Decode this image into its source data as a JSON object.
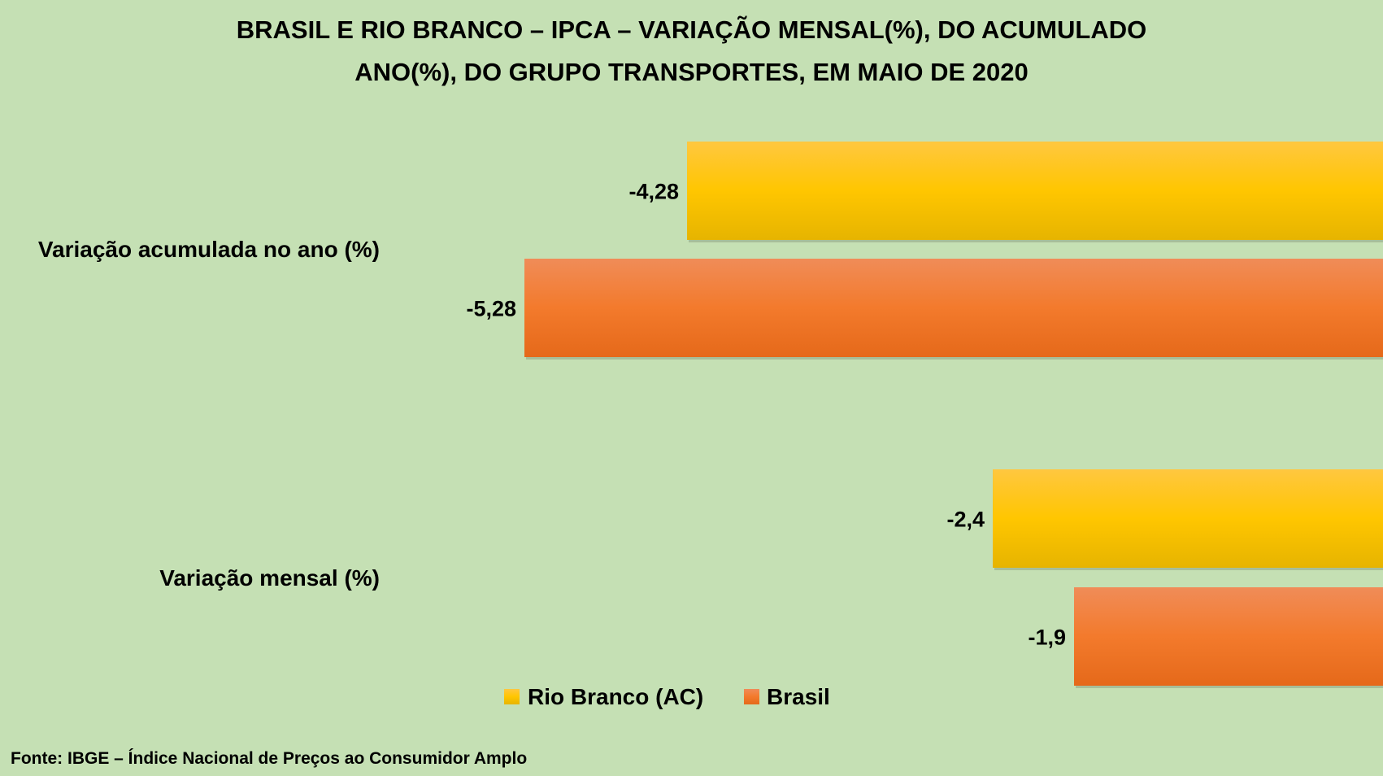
{
  "chart_data": {
    "type": "bar",
    "orientation": "horizontal",
    "title_lines": [
      "BRASIL E RIO BRANCO – IPCA – VARIAÇÃO MENSAL(%), DO ACUMULADO",
      "ANO(%), DO GRUPO TRANSPORTES, EM MAIO DE 2020"
    ],
    "categories": [
      "Variação acumulada no ano (%)",
      "Variação mensal (%)"
    ],
    "series": [
      {
        "name": "Rio Branco (AC)",
        "values": [
          -4.28,
          -2.4
        ],
        "labels": [
          "-4,28",
          "-2,4"
        ],
        "color": "#ffc000"
      },
      {
        "name": "Brasil",
        "values": [
          -5.28,
          -1.9
        ],
        "labels": [
          "-5,28",
          "-1,9"
        ],
        "color": "#f07a2a"
      }
    ],
    "xlim": [
      -7.2,
      0
    ],
    "grid": false,
    "legend_position": "bottom",
    "source": "Fonte: IBGE – Índice Nacional de Preços ao Consumidor Amplo"
  }
}
